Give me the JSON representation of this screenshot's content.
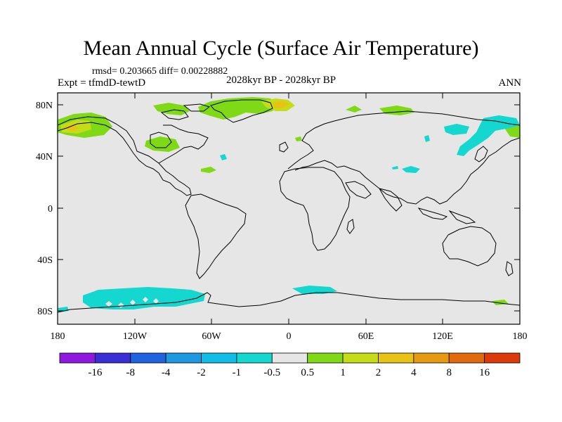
{
  "title": "Mean Annual Cycle (Surface Air Temperature)",
  "stats": "rmsd= 0.203665 diff= 0.00228882",
  "experiment": "Expt = tfmdD-tewtD",
  "period": "2028kyr BP - 2028kyr BP",
  "season": "ANN",
  "map": {
    "lat_labels": [
      "80N",
      "40N",
      "0",
      "40S",
      "80S"
    ],
    "lon_labels": [
      "180",
      "120W",
      "60W",
      "0",
      "60E",
      "120E",
      "180"
    ],
    "background_color": "#e6e6e6"
  },
  "colorbar": {
    "colors": [
      "#9019e0",
      "#3a2ed6",
      "#1f63e0",
      "#1e98e0",
      "#0fbde6",
      "#14d7cf",
      "#e6e6e6",
      "#7fd916",
      "#c4dd18",
      "#e8c214",
      "#e59a12",
      "#e16b0c",
      "#dc3a0a"
    ],
    "labels": [
      "-16",
      "-8",
      "-4",
      "-2",
      "-1",
      "-0.5",
      "0.5",
      "1",
      "2",
      "4",
      "8",
      "16"
    ]
  }
}
